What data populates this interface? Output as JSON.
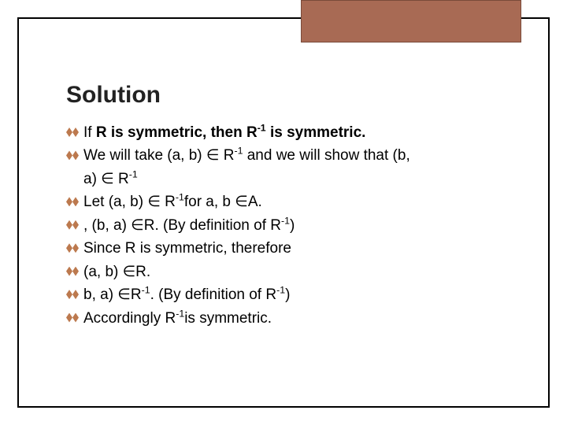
{
  "slide": {
    "title": "Solution",
    "title_fontsize": 30,
    "title_color": "#222222",
    "body_fontsize": 19,
    "body_color": "#000000",
    "header_box_color": "#a86a54",
    "header_box_border": "#7a4a3a",
    "frame_border_color": "#000000",
    "bullet_color": "#b56a3a",
    "background_color": "#ffffff",
    "lines": [
      {
        "prefix": "If ",
        "bold": "R is symmetric, then R",
        "sup1": "-1",
        "bold_tail": " is symmetric.",
        "plain": ""
      },
      {
        "plain_a": "We will take (a, b) ∈ R",
        "sup_a": "-1",
        "plain_b": " and we will show that (b,"
      },
      {
        "cont": "a) ∈ R",
        "sup_c": "-1"
      },
      {
        "plain_a": "Let (a, b) ∈ R",
        "sup_a": "-1",
        "plain_b": "for a, b ∈A."
      },
      {
        "plain_a": ", (b, a) ∈R.  (By definition of R",
        "sup_a": "-1",
        "plain_b": ")"
      },
      {
        "plain_a": "Since R is symmetric, therefore"
      },
      {
        "plain_a": "(a, b) ∈R."
      },
      {
        "plain_a": "b, a) ∈R",
        "sup_a": "-1",
        "plain_b": ".  (By definition of R",
        "sup_b": "-1",
        "plain_c": ")"
      },
      {
        "plain_a": "Accordingly R",
        "sup_a": "-1",
        "plain_b": "is symmetric."
      }
    ]
  }
}
